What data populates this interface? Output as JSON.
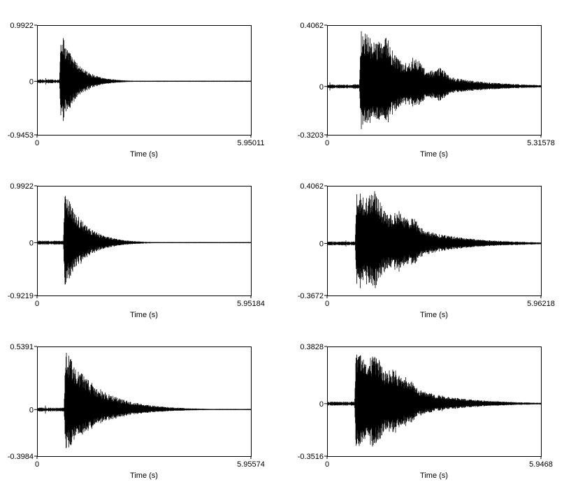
{
  "figure": {
    "background": "#ffffff",
    "wave_color": "#000000"
  },
  "chart_data": [
    {
      "type": "line",
      "subtype": "waveform",
      "xlabel": "Time (s)",
      "ylabel": "",
      "xlim": [
        0,
        5.95011
      ],
      "ylim": [
        -0.9453,
        0.9922
      ],
      "x_ticks": [
        "0",
        "5.95011"
      ],
      "y_ticks": [
        "0.9922",
        "0",
        "-0.9453"
      ],
      "envelope": {
        "onset": 0.62,
        "peak_pos": 0.9922,
        "peak_neg": -0.9453,
        "decay": 0.45,
        "bumps": [],
        "tail_end": 5.95011
      }
    },
    {
      "type": "line",
      "subtype": "waveform",
      "xlabel": "Time (s)",
      "ylabel": "",
      "xlim": [
        0,
        5.31578
      ],
      "ylim": [
        -0.3203,
        0.4062
      ],
      "x_ticks": [
        "0",
        "5.31578"
      ],
      "y_ticks": [
        "0.4062",
        "0",
        "-0.3203"
      ],
      "envelope": {
        "onset": 0.8,
        "peak_pos": 0.4062,
        "peak_neg": -0.3203,
        "decay": 1.2,
        "bumps": [
          1.45,
          2.2,
          2.8
        ],
        "tail_end": 5.31578
      }
    },
    {
      "type": "line",
      "subtype": "waveform",
      "xlabel": "Time (s)",
      "ylabel": "",
      "xlim": [
        0,
        5.95184
      ],
      "ylim": [
        -0.9219,
        0.9922
      ],
      "x_ticks": [
        "0",
        "5.95184"
      ],
      "y_ticks": [
        "0.9922",
        "0",
        "-0.9219"
      ],
      "envelope": {
        "onset": 0.73,
        "peak_pos": 0.9922,
        "peak_neg": -0.9219,
        "decay": 0.55,
        "bumps": [],
        "tail_end": 5.95184
      }
    },
    {
      "type": "line",
      "subtype": "waveform",
      "xlabel": "Time (s)",
      "ylabel": "",
      "xlim": [
        0,
        5.96218
      ],
      "ylim": [
        -0.3672,
        0.4062
      ],
      "x_ticks": [
        "0",
        "5.96218"
      ],
      "y_ticks": [
        "0.4062",
        "0",
        "-0.3672"
      ],
      "envelope": {
        "onset": 0.78,
        "peak_pos": 0.4062,
        "peak_neg": -0.3672,
        "decay": 1.3,
        "bumps": [
          1.35,
          2.0,
          2.4
        ],
        "tail_end": 5.96218
      }
    },
    {
      "type": "line",
      "subtype": "waveform",
      "xlabel": "Time (s)",
      "ylabel": "",
      "xlim": [
        0,
        5.95574
      ],
      "ylim": [
        -0.3984,
        0.5391
      ],
      "x_ticks": [
        "0",
        "5.95574"
      ],
      "y_ticks": [
        "0.5391",
        "0",
        "-0.3984"
      ],
      "envelope": {
        "onset": 0.75,
        "peak_pos": 0.5391,
        "peak_neg": -0.3984,
        "decay": 0.9,
        "bumps": [],
        "tail_end": 5.95574
      }
    },
    {
      "type": "line",
      "subtype": "waveform",
      "xlabel": "Time (s)",
      "ylabel": "",
      "xlim": [
        0,
        5.9468
      ],
      "ylim": [
        -0.3516,
        0.3828
      ],
      "x_ticks": [
        "0",
        "5.9468"
      ],
      "y_ticks": [
        "0.3828",
        "0",
        "-0.3516"
      ],
      "envelope": {
        "onset": 0.76,
        "peak_pos": 0.3828,
        "peak_neg": -0.3516,
        "decay": 1.25,
        "bumps": [
          1.35,
          1.85,
          2.25
        ],
        "tail_end": 5.9468
      }
    }
  ]
}
